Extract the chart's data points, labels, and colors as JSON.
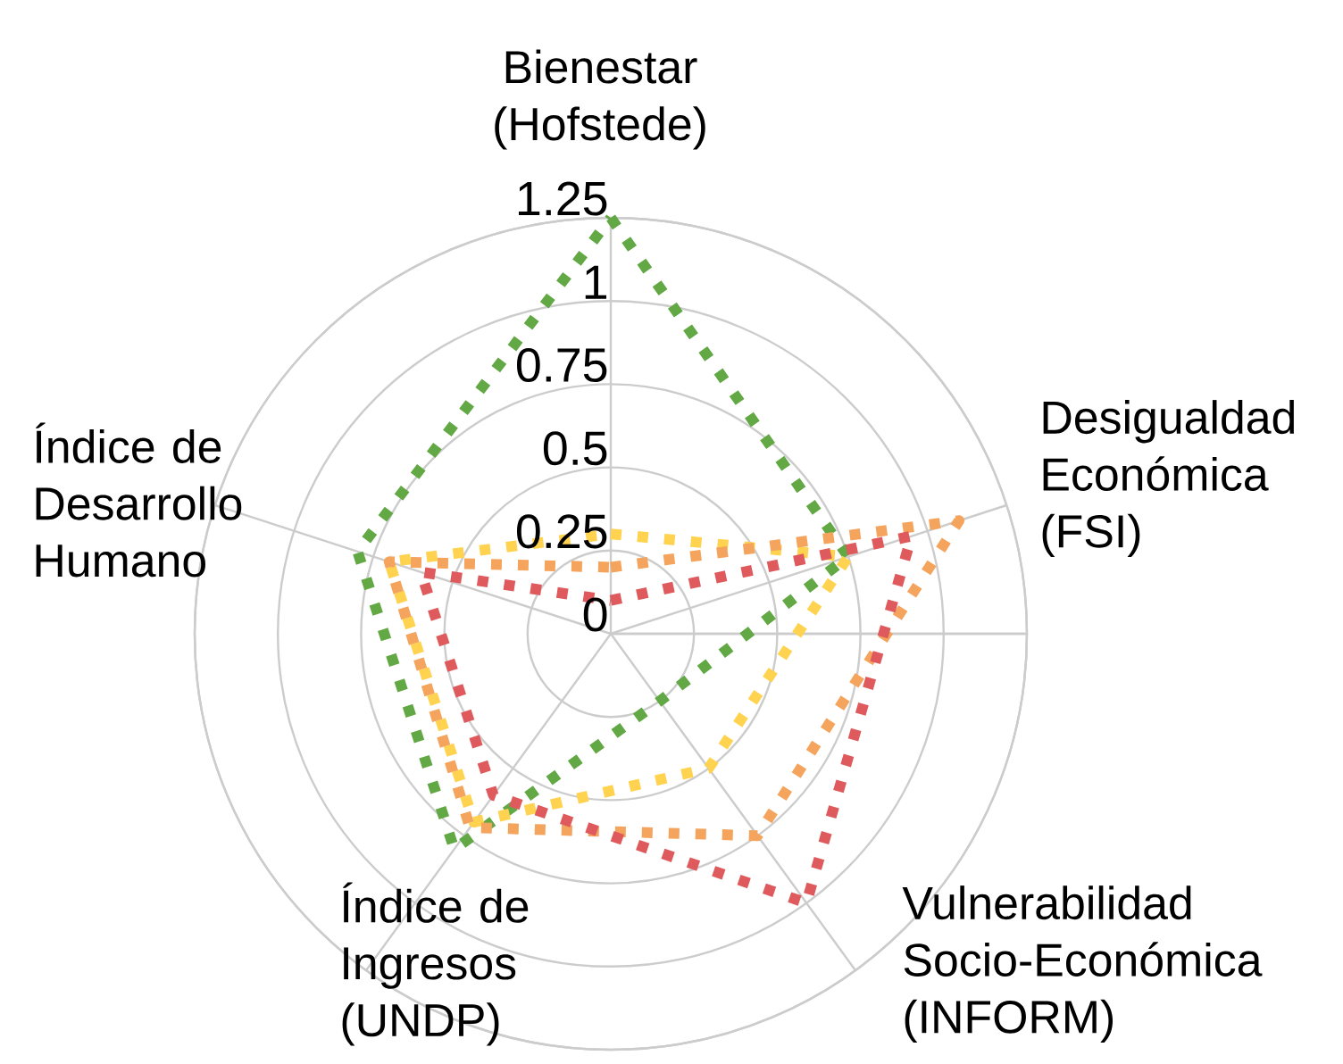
{
  "chart_data": {
    "type": "radar",
    "categories": [
      "Bienestar (Hofstede)",
      "Desigualdad Económica (FSI)",
      "Vulnerabilidad Socio-Económica (INFORM)",
      "Índice de Ingresos (UNDP)",
      "Índice de Desarrollo Humano"
    ],
    "series": [
      {
        "color": "#62a844",
        "values": [
          1.25,
          0.75,
          0.25,
          0.8,
          0.8
        ]
      },
      {
        "color": "#ffd24f",
        "values": [
          0.3,
          0.75,
          0.5,
          0.7,
          0.7
        ]
      },
      {
        "color": "#f4a45c",
        "values": [
          0.2,
          1.1,
          0.75,
          0.72,
          0.7
        ]
      },
      {
        "color": "#df5a5c",
        "values": [
          0.1,
          0.95,
          1.0,
          0.6,
          0.6
        ]
      }
    ],
    "ylim": [
      0,
      1.25
    ],
    "yticks": [
      0,
      0.25,
      0.5,
      0.75,
      1,
      1.25
    ],
    "grid": true,
    "line_style": "dotted"
  }
}
